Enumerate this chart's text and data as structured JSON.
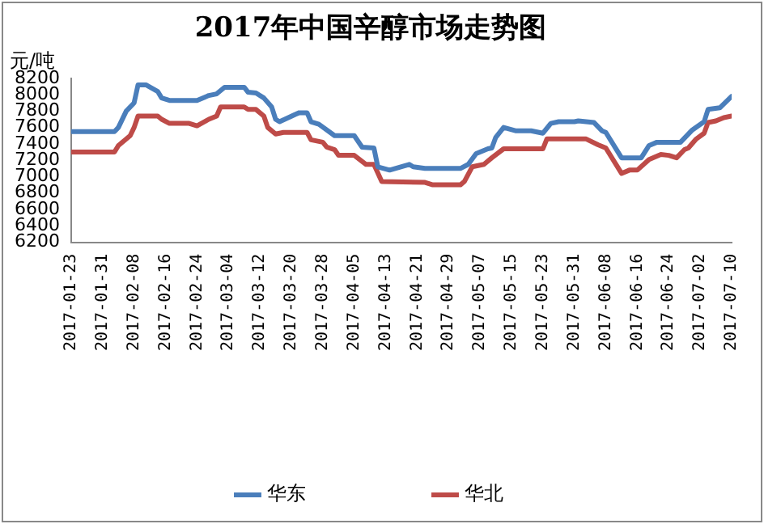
{
  "chart_data": {
    "type": "line",
    "title": "2017年中国辛醇市场走势图",
    "ylabel": "元/吨",
    "xlim": [
      "2017-01-23",
      "2017-07-10"
    ],
    "xticks": [
      "2017-01-23",
      "2017-01-31",
      "2017-02-08",
      "2017-02-16",
      "2017-02-24",
      "2017-03-04",
      "2017-03-12",
      "2017-03-20",
      "2017-03-28",
      "2017-04-05",
      "2017-04-13",
      "2017-04-21",
      "2017-04-29",
      "2017-05-07",
      "2017-05-15",
      "2017-05-23",
      "2017-05-31",
      "2017-06-08",
      "2017-06-16",
      "2017-06-24",
      "2017-07-02",
      "2017-07-10"
    ],
    "ylim": [
      6200,
      8200
    ],
    "yticks": [
      6200,
      6400,
      6600,
      6800,
      7000,
      7200,
      7400,
      7600,
      7800,
      8000,
      8200
    ],
    "grid": false,
    "legend": "bottom",
    "marker": "none",
    "line_style": "solid",
    "series": [
      {
        "name": "华东",
        "color": "#4a7ebb",
        "x": [
          "2017-01-23",
          "2017-02-03",
          "2017-02-04",
          "2017-02-06",
          "2017-02-08",
          "2017-02-09",
          "2017-02-11",
          "2017-02-14",
          "2017-02-15",
          "2017-02-17",
          "2017-02-24",
          "2017-02-27",
          "2017-03-01",
          "2017-03-03",
          "2017-03-08",
          "2017-03-09",
          "2017-03-11",
          "2017-03-13",
          "2017-03-15",
          "2017-03-16",
          "2017-03-17",
          "2017-03-21",
          "2017-03-22",
          "2017-03-24",
          "2017-03-25",
          "2017-03-27",
          "2017-03-31",
          "2017-04-05",
          "2017-04-07",
          "2017-04-10",
          "2017-04-11",
          "2017-04-14",
          "2017-04-19",
          "2017-04-20",
          "2017-04-23",
          "2017-05-02",
          "2017-05-04",
          "2017-05-06",
          "2017-05-09",
          "2017-05-10",
          "2017-05-11",
          "2017-05-13",
          "2017-05-16",
          "2017-05-20",
          "2017-05-23",
          "2017-05-25",
          "2017-05-27",
          "2017-05-31",
          "2017-06-01",
          "2017-06-05",
          "2017-06-07",
          "2017-06-08",
          "2017-06-12",
          "2017-06-17",
          "2017-06-19",
          "2017-06-21",
          "2017-06-27",
          "2017-06-30",
          "2017-07-03",
          "2017-07-04",
          "2017-07-07",
          "2017-07-10"
        ],
        "values": [
          7550,
          7550,
          7600,
          7800,
          7900,
          8120,
          8120,
          8040,
          7960,
          7930,
          7930,
          7990,
          8010,
          8090,
          8090,
          8030,
          8020,
          7960,
          7850,
          7700,
          7670,
          7760,
          7780,
          7780,
          7670,
          7640,
          7500,
          7500,
          7360,
          7350,
          7120,
          7080,
          7150,
          7120,
          7100,
          7100,
          7150,
          7280,
          7340,
          7350,
          7480,
          7600,
          7560,
          7560,
          7530,
          7650,
          7670,
          7670,
          7680,
          7660,
          7560,
          7540,
          7230,
          7230,
          7380,
          7420,
          7420,
          7570,
          7670,
          7820,
          7840,
          7980
        ]
      },
      {
        "name": "华北",
        "color": "#be4b48",
        "x": [
          "2017-01-23",
          "2017-02-03",
          "2017-02-04",
          "2017-02-07",
          "2017-02-08",
          "2017-02-09",
          "2017-02-14",
          "2017-02-15",
          "2017-02-17",
          "2017-02-22",
          "2017-02-24",
          "2017-02-27",
          "2017-03-01",
          "2017-03-02",
          "2017-03-08",
          "2017-03-09",
          "2017-03-11",
          "2017-03-13",
          "2017-03-14",
          "2017-03-16",
          "2017-03-18",
          "2017-03-24",
          "2017-03-25",
          "2017-03-28",
          "2017-03-29",
          "2017-03-31",
          "2017-04-01",
          "2017-04-05",
          "2017-04-08",
          "2017-04-10",
          "2017-04-12",
          "2017-04-23",
          "2017-04-25",
          "2017-05-02",
          "2017-05-03",
          "2017-05-05",
          "2017-05-08",
          "2017-05-10",
          "2017-05-13",
          "2017-05-23",
          "2017-05-24",
          "2017-06-03",
          "2017-06-06",
          "2017-06-08",
          "2017-06-12",
          "2017-06-14",
          "2017-06-16",
          "2017-06-19",
          "2017-06-22",
          "2017-06-24",
          "2017-06-26",
          "2017-06-28",
          "2017-06-29",
          "2017-07-01",
          "2017-07-03",
          "2017-07-04",
          "2017-07-06",
          "2017-07-08",
          "2017-07-10"
        ],
        "values": [
          7300,
          7300,
          7380,
          7500,
          7600,
          7740,
          7740,
          7700,
          7650,
          7650,
          7620,
          7700,
          7740,
          7850,
          7850,
          7820,
          7820,
          7740,
          7600,
          7520,
          7540,
          7540,
          7450,
          7420,
          7360,
          7330,
          7260,
          7260,
          7150,
          7150,
          6940,
          6930,
          6900,
          6900,
          6940,
          7120,
          7150,
          7230,
          7340,
          7340,
          7460,
          7460,
          7390,
          7350,
          7040,
          7080,
          7080,
          7210,
          7270,
          7260,
          7230,
          7330,
          7350,
          7460,
          7530,
          7660,
          7680,
          7720,
          7740
        ]
      }
    ]
  }
}
